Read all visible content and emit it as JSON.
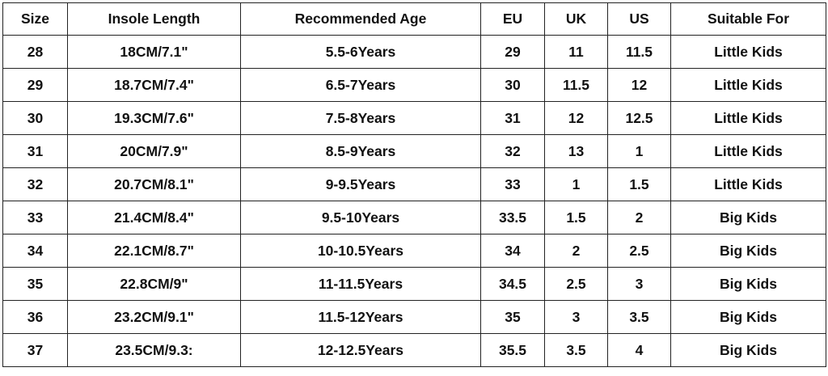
{
  "headers": [
    "Size",
    "Insole Length",
    "Recommended Age",
    "EU",
    "UK",
    "US",
    "Suitable For"
  ],
  "rows": [
    [
      "28",
      "18CM/7.1\"",
      "5.5-6Years",
      "29",
      "11",
      "11.5",
      "Little Kids"
    ],
    [
      "29",
      "18.7CM/7.4\"",
      "6.5-7Years",
      "30",
      "11.5",
      "12",
      "Little Kids"
    ],
    [
      "30",
      "19.3CM/7.6\"",
      "7.5-8Years",
      "31",
      "12",
      "12.5",
      "Little Kids"
    ],
    [
      "31",
      "20CM/7.9\"",
      "8.5-9Years",
      "32",
      "13",
      "1",
      "Little Kids"
    ],
    [
      "32",
      "20.7CM/8.1\"",
      "9-9.5Years",
      "33",
      "1",
      "1.5",
      "Little Kids"
    ],
    [
      "33",
      "21.4CM/8.4\"",
      "9.5-10Years",
      "33.5",
      "1.5",
      "2",
      "Big Kids"
    ],
    [
      "34",
      "22.1CM/8.7\"",
      "10-10.5Years",
      "34",
      "2",
      "2.5",
      "Big Kids"
    ],
    [
      "35",
      "22.8CM/9\"",
      "11-11.5Years",
      "34.5",
      "2.5",
      "3",
      "Big Kids"
    ],
    [
      "36",
      "23.2CM/9.1\"",
      "11.5-12Years",
      "35",
      "3",
      "3.5",
      "Big Kids"
    ],
    [
      "37",
      "23.5CM/9.3:",
      "12-12.5Years",
      "35.5",
      "3.5",
      "4",
      "Big Kids"
    ]
  ]
}
